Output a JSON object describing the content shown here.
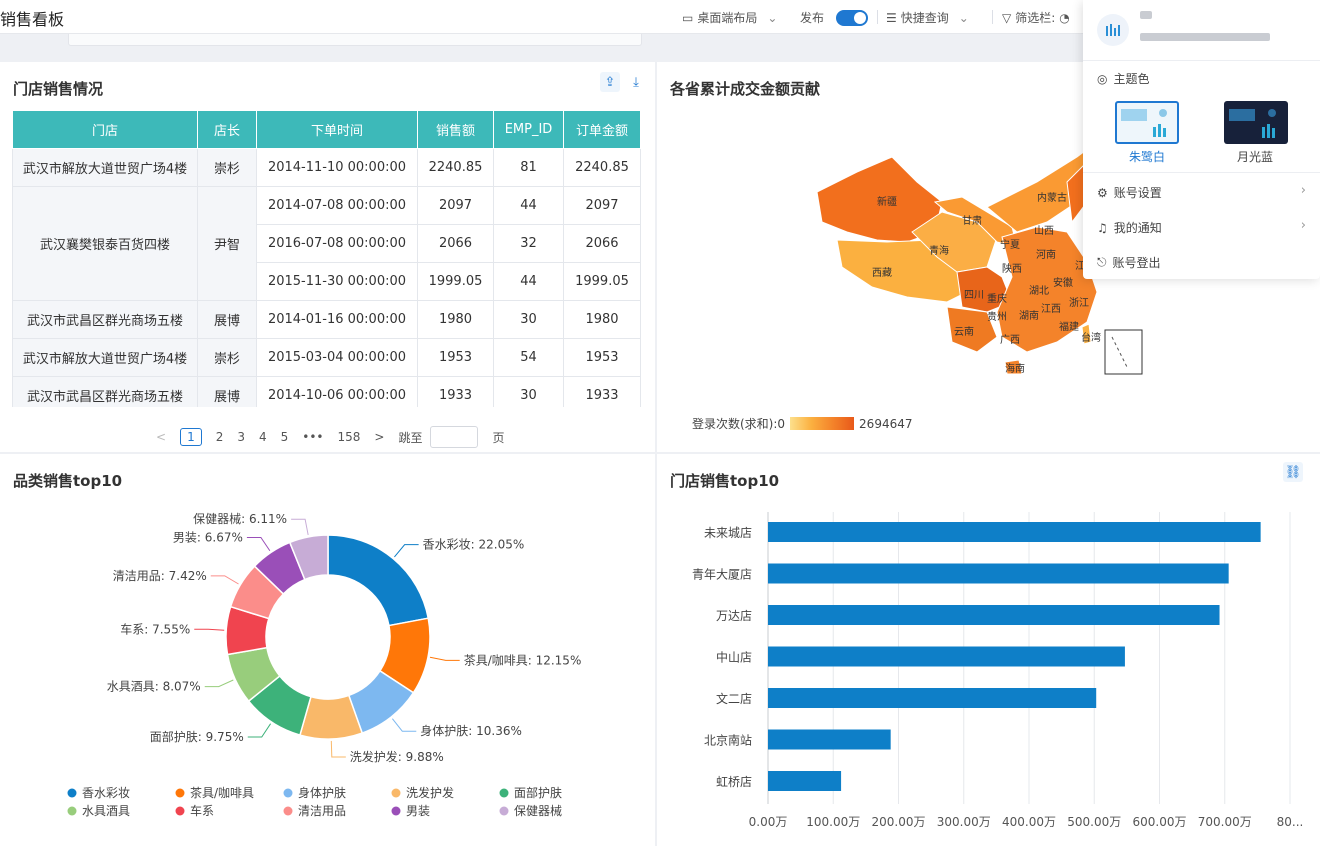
{
  "header": {
    "title": "销售看板",
    "layout_label": "桌面端布局",
    "publish_label": "发布",
    "quick_query_label": "快捷查询",
    "filter_label": "筛选栏:"
  },
  "table_card": {
    "title": "门店销售情况",
    "columns": [
      "门店",
      "店长",
      "下单时间",
      "销售额",
      "EMP_ID",
      "订单金额"
    ],
    "rows": [
      {
        "store": "武汉市解放大道世贸广场4楼",
        "manager": "崇杉",
        "time": "2014-11-10 00:00:00",
        "sales": "2240.85",
        "emp": "81",
        "amount": "2240.85"
      },
      {
        "store": "武汉襄樊银泰百货四楼",
        "manager": "尹智",
        "time": "2014-07-08 00:00:00",
        "sales": "2097",
        "emp": "44",
        "amount": "2097"
      },
      {
        "store": "",
        "manager": "",
        "time": "2016-07-08 00:00:00",
        "sales": "2066",
        "emp": "32",
        "amount": "2066"
      },
      {
        "store": "",
        "manager": "",
        "time": "2015-11-30 00:00:00",
        "sales": "1999.05",
        "emp": "44",
        "amount": "1999.05"
      },
      {
        "store": "武汉市武昌区群光商场五楼",
        "manager": "展博",
        "time": "2014-01-16 00:00:00",
        "sales": "1980",
        "emp": "30",
        "amount": "1980"
      },
      {
        "store": "武汉市解放大道世贸广场4楼",
        "manager": "崇杉",
        "time": "2015-03-04 00:00:00",
        "sales": "1953",
        "emp": "54",
        "amount": "1953"
      },
      {
        "store": "武汉市武昌区群光商场五楼",
        "manager": "展博",
        "time": "2014-10-06 00:00:00",
        "sales": "1933",
        "emp": "30",
        "amount": "1933"
      }
    ],
    "pager": {
      "prev": "<",
      "pages": [
        "1",
        "2",
        "3",
        "4",
        "5"
      ],
      "ellipsis": "•••",
      "last": "158",
      "next": ">",
      "goto": "跳至",
      "unit": "页"
    }
  },
  "map_card": {
    "title": "各省累计成交金额贡献",
    "legend_min": "登录次数(求和):0",
    "legend_max": "2694647",
    "provinces": [
      "新疆",
      "西藏",
      "青海",
      "甘肃",
      "内蒙古",
      "四川",
      "云南",
      "贵州",
      "广西",
      "湖南",
      "湖北",
      "陕西",
      "河南",
      "江西",
      "安徽",
      "浙江",
      "福建",
      "海南",
      "重庆",
      "江苏",
      "山西",
      "宁夏",
      "台湾"
    ]
  },
  "donut_card": {
    "title": "品类销售top10"
  },
  "bar_card": {
    "title": "门店销售top10"
  },
  "panel": {
    "theme_title": "主题色",
    "theme_light": "朱鹭白",
    "theme_dark": "月光蓝",
    "account_settings": "账号设置",
    "notifications": "我的通知",
    "logout": "账号登出"
  },
  "chart_data": [
    {
      "type": "pie",
      "title": "品类销售top10",
      "categories": [
        "香水彩妆",
        "茶具/咖啡具",
        "身体护肤",
        "洗发护发",
        "面部护肤",
        "水具酒具",
        "车系",
        "清洁用品",
        "男装",
        "保健器械"
      ],
      "values": [
        22.05,
        12.15,
        10.36,
        9.88,
        9.75,
        8.07,
        7.55,
        7.42,
        6.67,
        6.11
      ],
      "labels": [
        "香水彩妆: 22.05%",
        "茶具/咖啡具: 12.15%",
        "身体护肤: 10.36%",
        "洗发护发: 9.88%",
        "面部护肤: 9.75%",
        "水具酒具: 8.07%",
        "车系: 7.55%",
        "清洁用品: 7.42%",
        "男装: 6.67%",
        "保健器械: 6.11%"
      ],
      "colors": [
        "#0e7fc8",
        "#ff7708",
        "#7db8f0",
        "#f9b869",
        "#3db27a",
        "#98cd7c",
        "#f0444f",
        "#fb8d8a",
        "#9a4fb8",
        "#c7acd6"
      ],
      "legend": "bottom"
    },
    {
      "type": "bar",
      "orientation": "horizontal",
      "title": "门店销售top10",
      "categories": [
        "未来城店",
        "青年大厦店",
        "万达店",
        "中山店",
        "文二店",
        "北京南站",
        "虹桥店"
      ],
      "values": [
        7550000,
        7060000,
        6920000,
        5470000,
        5030000,
        1880000,
        1120000
      ],
      "xlim": [
        0,
        8000000
      ],
      "ticks": [
        "0.00万",
        "100.00万",
        "200.00万",
        "300.00万",
        "400.00万",
        "500.00万",
        "600.00万",
        "700.00万",
        "80..."
      ],
      "color": "#0e7fc8",
      "grid": true
    }
  ]
}
